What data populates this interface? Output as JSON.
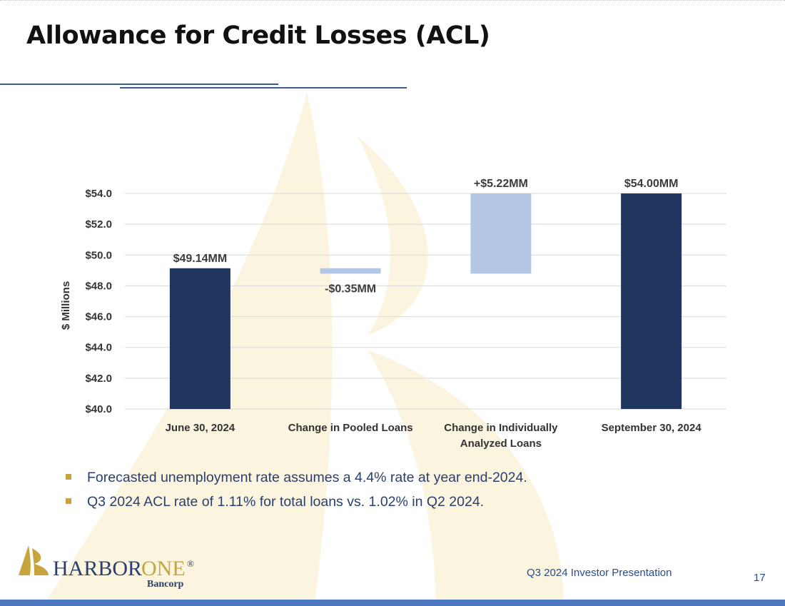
{
  "slide": {
    "title": "Allowance for Credit Losses (ACL)",
    "footer": "Q3 2024 Investor Presentation",
    "page_number": "17"
  },
  "logo": {
    "name_part1": "HARBOR",
    "name_part2": "ONE",
    "registered": "®",
    "sub": "Bancorp"
  },
  "bullets": [
    "Forecasted unemployment rate assumes a 4.4% rate at year end-2024.",
    "Q3 2024 ACL rate of 1.11% for total loans vs. 1.02% in Q2 2024."
  ],
  "colors": {
    "dark_bar": "#21365f",
    "light_bar": "#b3c6e6",
    "bullet": "#c8a43c",
    "watermark": "#fbf4de"
  },
  "chart_data": {
    "type": "bar",
    "subtype": "waterfall",
    "ylabel": "$ Millions",
    "ylim": [
      40,
      54
    ],
    "yticks": [
      "$40.0",
      "$42.0",
      "$44.0",
      "$46.0",
      "$48.0",
      "$50.0",
      "$52.0",
      "$54.0"
    ],
    "ytick_values": [
      40,
      42,
      44,
      46,
      48,
      50,
      52,
      54
    ],
    "grid": true,
    "bars": [
      {
        "category": [
          "June 30, 2024"
        ],
        "kind": "total",
        "start": 40,
        "end": 49.14,
        "label": "$49.14MM"
      },
      {
        "category": [
          "Change in Pooled Loans"
        ],
        "kind": "delta",
        "start": 49.14,
        "end": 48.79,
        "label": "-$0.35MM"
      },
      {
        "category": [
          "Change in Individually",
          "Analyzed Loans"
        ],
        "kind": "delta",
        "start": 48.79,
        "end": 54.0,
        "label": "+$5.22MM"
      },
      {
        "category": [
          "September 30, 2024"
        ],
        "kind": "total",
        "start": 40,
        "end": 54.0,
        "label": "$54.00MM"
      }
    ]
  }
}
